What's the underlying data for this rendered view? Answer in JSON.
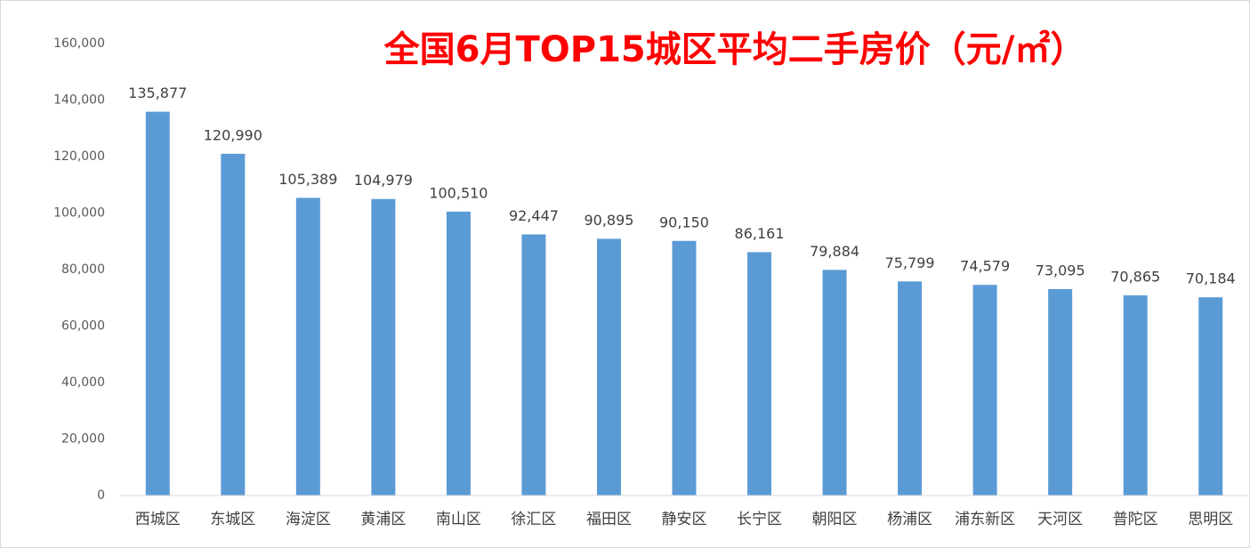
{
  "chart_data": {
    "type": "bar",
    "title": "全国6月TOP15城区平均二手房价（元/㎡）",
    "categories": [
      "西城区",
      "东城区",
      "海淀区",
      "黄浦区",
      "南山区",
      "徐汇区",
      "福田区",
      "静安区",
      "长宁区",
      "朝阳区",
      "杨浦区",
      "浦东新区",
      "天河区",
      "普陀区",
      "思明区"
    ],
    "values": [
      135877,
      120990,
      105389,
      104979,
      100510,
      92447,
      90895,
      90150,
      86161,
      79884,
      75799,
      74579,
      73095,
      70865,
      70184
    ],
    "value_labels": [
      "135,877",
      "120,990",
      "105,389",
      "104,979",
      "100,510",
      "92,447",
      "90,895",
      "90,150",
      "86,161",
      "79,884",
      "75,799",
      "74,579",
      "73,095",
      "70,865",
      "70,184"
    ],
    "color": "#5b9bd5",
    "ylim": [
      0,
      160000
    ],
    "yticks": [
      0,
      {
        "value": 20000,
        "label": "20,000"
      },
      {
        "value": 40000,
        "label": "40,000"
      },
      {
        "value": 60000,
        "label": "60,000"
      },
      {
        "value": 80000,
        "label": "80,000"
      },
      {
        "value": 100000,
        "label": "100,000"
      },
      {
        "value": 120000,
        "label": "120,000"
      },
      {
        "value": 140000,
        "label": "140,000"
      },
      {
        "value": 160000,
        "label": "160,000"
      }
    ],
    "grid": false
  }
}
